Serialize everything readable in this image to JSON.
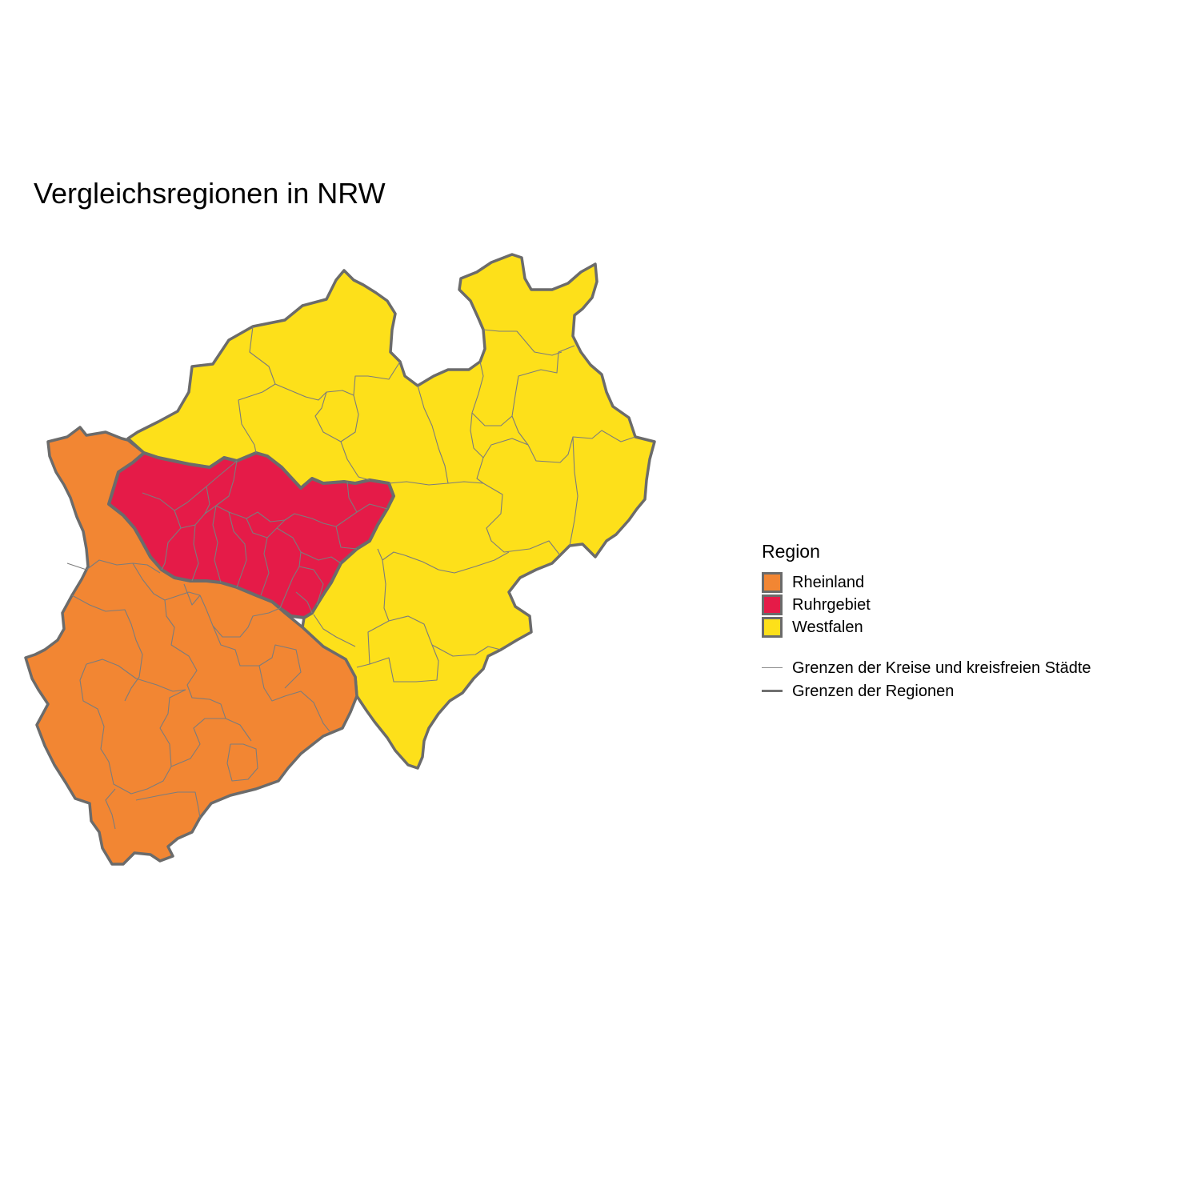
{
  "title": "Vergleichsregionen in NRW",
  "legend": {
    "title": "Region",
    "regions": [
      {
        "label": "Rheinland",
        "color": "#f28633"
      },
      {
        "label": "Ruhrgebiet",
        "color": "#e51b48"
      },
      {
        "label": "Westfalen",
        "color": "#fde01a"
      }
    ],
    "lines": [
      {
        "label": "Grenzen der Kreise und kreisfreien Städte",
        "color": "#8c8c8c"
      },
      {
        "label": "Grenzen der Regionen",
        "color": "#707070"
      }
    ]
  }
}
